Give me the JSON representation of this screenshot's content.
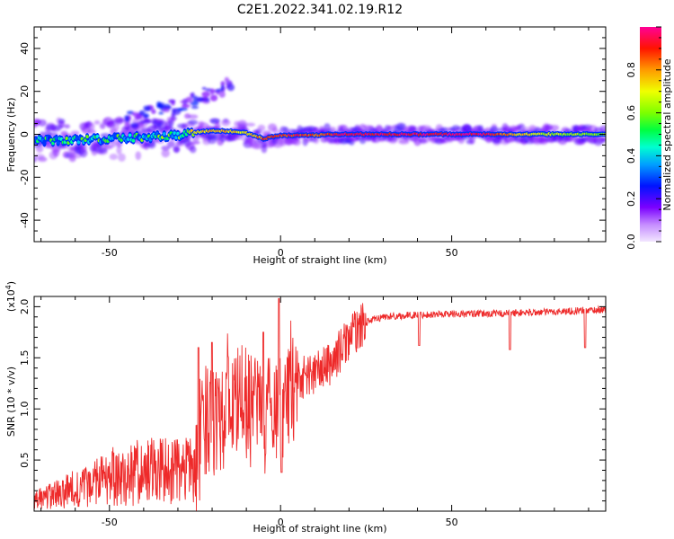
{
  "title": "C2E1.2022.341.02.19.R12",
  "chart_data": [
    {
      "type": "heatmap",
      "xlabel": "Height of straight line (km)",
      "ylabel": "Frequency (Hz)",
      "xlim": [
        -72,
        95
      ],
      "ylim": [
        -50,
        50
      ],
      "xticks": [
        -50,
        0,
        50
      ],
      "yticks": [
        -40,
        -20,
        0,
        20,
        40
      ],
      "colorbar": {
        "label": "Normalized spectral amplitude",
        "range": [
          0.0,
          1.0
        ],
        "ticks": [
          0.0,
          0.2,
          0.4,
          0.6,
          0.8
        ],
        "tick_labels": [
          "0.0",
          "0.2",
          "0.4",
          "0.6",
          "0.8"
        ]
      },
      "ridge": {
        "x": [
          -72,
          -60,
          -50,
          -40,
          -30,
          -25,
          -20,
          -15,
          -10,
          -5,
          0,
          5,
          10,
          15,
          20,
          30,
          40,
          50,
          60,
          70,
          80,
          93
        ],
        "freq": [
          -3,
          -2.5,
          -2,
          -1.5,
          -0.5,
          1,
          1.5,
          1.5,
          0.5,
          -2,
          -0.5,
          -0.5,
          -0.5,
          0,
          0,
          0,
          0,
          0,
          0,
          0,
          0,
          0
        ],
        "amplitude": [
          0.4,
          0.45,
          0.45,
          0.45,
          0.5,
          0.7,
          0.8,
          0.75,
          0.7,
          0.85,
          0.9,
          0.9,
          0.85,
          0.9,
          0.95,
          0.95,
          0.95,
          0.95,
          0.95,
          0.75,
          0.65,
          0.6
        ]
      },
      "secondary_branch": {
        "x": [
          -45,
          -38,
          -30,
          -22,
          -14
        ],
        "freq": [
          6,
          9,
          13,
          18,
          25
        ]
      }
    },
    {
      "type": "line",
      "xlabel": "Height of straight line (km)",
      "ylabel": "SNR (10 * v/v)",
      "y_multiplier": "(x10",
      "y_multiplier_exp": "4",
      "y_multiplier_close": ")",
      "xlim": [
        -72,
        95
      ],
      "ylim": [
        0,
        2.1
      ],
      "xticks": [
        -50,
        0,
        50
      ],
      "yticks": [
        0.5,
        1.0,
        1.5,
        2.0
      ],
      "ytick_labels": [
        "0.5",
        "1.0",
        "1.5",
        "2.0"
      ],
      "color": "#ee2a2a",
      "envelope": {
        "x": [
          -72,
          -60,
          -50,
          -40,
          -30,
          -25,
          -23,
          -20,
          -15,
          -10,
          -5,
          0,
          5,
          10,
          15,
          20,
          25,
          30,
          40,
          50,
          60,
          70,
          80,
          93
        ],
        "y": [
          0.1,
          0.2,
          0.3,
          0.35,
          0.35,
          0.35,
          0.8,
          1.0,
          1.05,
          1.05,
          1.0,
          1.05,
          1.3,
          1.35,
          1.45,
          1.7,
          1.85,
          1.9,
          1.92,
          1.93,
          1.93,
          1.94,
          1.95,
          1.97
        ]
      },
      "dips": [
        {
          "x": 0.3,
          "y": 0.38
        },
        {
          "x": 40.5,
          "y": 1.62
        },
        {
          "x": 67,
          "y": 1.58
        },
        {
          "x": 89,
          "y": 1.6
        }
      ],
      "spikes": [
        {
          "x": -0.5,
          "y": 2.08
        },
        {
          "x": -24,
          "y": 1.6
        },
        {
          "x": -20,
          "y": 1.65
        },
        {
          "x": -5,
          "y": 1.75
        }
      ]
    }
  ]
}
